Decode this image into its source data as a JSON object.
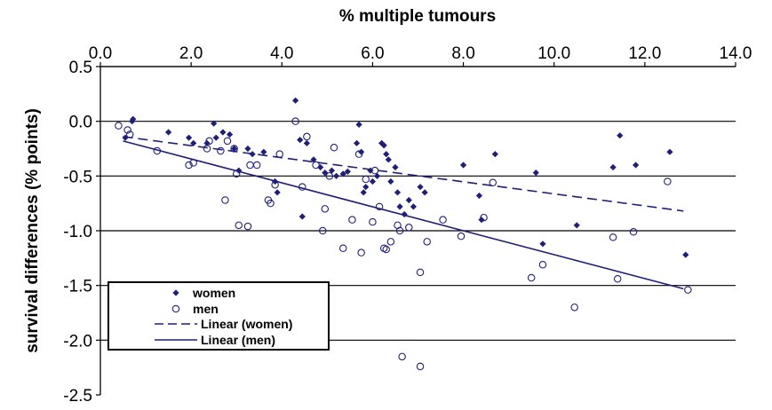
{
  "chart_data": {
    "type": "scatter",
    "xlabel": "% multiple tumours",
    "ylabel": "survival differences (% points)",
    "xlim": [
      0,
      14
    ],
    "ylim": [
      -2.5,
      0.5
    ],
    "x_axis_position": "top",
    "x_ticks": [
      0.0,
      2.0,
      4.0,
      6.0,
      8.0,
      10.0,
      12.0,
      14.0
    ],
    "x_tick_labels": [
      "0.0",
      "2.0",
      "4.0",
      "6.0",
      "8.0",
      "10.0",
      "12.0",
      "14.0"
    ],
    "y_ticks": [
      0.5,
      0.0,
      -0.5,
      -1.0,
      -1.5,
      -2.0,
      -2.5
    ],
    "y_tick_labels": [
      "0.5",
      "0.0",
      "-0.5",
      "-1.0",
      "-1.5",
      "-2.0",
      "-2.5"
    ],
    "grid": "horizontal",
    "legend_position": "bottom-left",
    "colors": {
      "series": "#1f1f7a",
      "grid": "#000000"
    },
    "series": [
      {
        "name": "women",
        "marker": "filled-diamond",
        "points": [
          [
            0.55,
            -0.15
          ],
          [
            0.7,
            0.0
          ],
          [
            0.72,
            0.02
          ],
          [
            1.5,
            -0.1
          ],
          [
            1.95,
            -0.15
          ],
          [
            2.05,
            -0.2
          ],
          [
            2.35,
            -0.2
          ],
          [
            2.5,
            -0.02
          ],
          [
            2.55,
            -0.15
          ],
          [
            2.7,
            -0.1
          ],
          [
            2.85,
            -0.12
          ],
          [
            2.95,
            -0.25
          ],
          [
            3.05,
            -0.45
          ],
          [
            3.25,
            -0.25
          ],
          [
            3.35,
            -0.3
          ],
          [
            3.6,
            -0.28
          ],
          [
            3.85,
            -0.55
          ],
          [
            3.9,
            -0.65
          ],
          [
            4.3,
            0.19
          ],
          [
            4.4,
            -0.17
          ],
          [
            4.55,
            -0.2
          ],
          [
            4.7,
            -0.35
          ],
          [
            4.85,
            -0.42
          ],
          [
            4.95,
            -0.47
          ],
          [
            5.1,
            -0.45
          ],
          [
            5.2,
            -0.5
          ],
          [
            5.35,
            -0.48
          ],
          [
            5.65,
            -0.2
          ],
          [
            5.7,
            -0.03
          ],
          [
            5.75,
            -0.28
          ],
          [
            5.8,
            -0.65
          ],
          [
            5.85,
            -0.6
          ],
          [
            5.95,
            -0.45
          ],
          [
            6.0,
            -0.55
          ],
          [
            6.1,
            -0.5
          ],
          [
            6.2,
            -0.2
          ],
          [
            6.25,
            -0.22
          ],
          [
            6.3,
            -0.3
          ],
          [
            6.35,
            -0.35
          ],
          [
            6.4,
            -0.55
          ],
          [
            6.5,
            -0.42
          ],
          [
            6.55,
            -0.65
          ],
          [
            6.6,
            -0.78
          ],
          [
            6.7,
            -0.85
          ],
          [
            6.8,
            -0.72
          ],
          [
            6.9,
            -0.78
          ],
          [
            7.05,
            -0.6
          ],
          [
            7.15,
            -0.65
          ],
          [
            8.0,
            -0.4
          ],
          [
            8.35,
            -0.68
          ],
          [
            8.4,
            -0.9
          ],
          [
            8.7,
            -0.3
          ],
          [
            9.6,
            -0.47
          ],
          [
            9.75,
            -1.12
          ],
          [
            10.5,
            -0.95
          ],
          [
            11.3,
            -0.42
          ],
          [
            11.45,
            -0.13
          ],
          [
            11.8,
            -0.4
          ],
          [
            12.55,
            -0.28
          ],
          [
            12.9,
            -1.22
          ],
          [
            4.45,
            -0.87
          ],
          [
            5.45,
            -0.46
          ]
        ]
      },
      {
        "name": "men",
        "marker": "open-circle",
        "points": [
          [
            0.4,
            -0.04
          ],
          [
            0.6,
            -0.08
          ],
          [
            0.65,
            -0.12
          ],
          [
            1.25,
            -0.27
          ],
          [
            1.95,
            -0.4
          ],
          [
            2.05,
            -0.38
          ],
          [
            2.35,
            -0.25
          ],
          [
            2.4,
            -0.18
          ],
          [
            2.65,
            -0.27
          ],
          [
            2.75,
            -0.72
          ],
          [
            2.8,
            -0.18
          ],
          [
            2.95,
            -0.25
          ],
          [
            3.0,
            -0.48
          ],
          [
            3.05,
            -0.95
          ],
          [
            3.25,
            -0.96
          ],
          [
            3.3,
            -0.4
          ],
          [
            3.45,
            -0.4
          ],
          [
            3.7,
            -0.72
          ],
          [
            3.75,
            -0.75
          ],
          [
            3.85,
            -0.58
          ],
          [
            4.3,
            0.0
          ],
          [
            4.45,
            -0.6
          ],
          [
            4.55,
            -0.14
          ],
          [
            4.75,
            -0.4
          ],
          [
            4.9,
            -1.0
          ],
          [
            4.95,
            -0.8
          ],
          [
            5.05,
            -0.5
          ],
          [
            5.15,
            -0.24
          ],
          [
            5.35,
            -1.16
          ],
          [
            5.55,
            -0.9
          ],
          [
            5.7,
            -0.3
          ],
          [
            5.75,
            -1.2
          ],
          [
            5.85,
            -0.53
          ],
          [
            6.0,
            -0.92
          ],
          [
            6.15,
            -0.78
          ],
          [
            6.25,
            -1.16
          ],
          [
            6.3,
            -1.17
          ],
          [
            6.4,
            -1.1
          ],
          [
            6.55,
            -0.95
          ],
          [
            6.6,
            -1.0
          ],
          [
            6.65,
            -2.15
          ],
          [
            6.8,
            -0.97
          ],
          [
            7.05,
            -2.24
          ],
          [
            7.05,
            -1.38
          ],
          [
            7.2,
            -1.1
          ],
          [
            7.55,
            -0.9
          ],
          [
            7.95,
            -1.05
          ],
          [
            8.45,
            -0.88
          ],
          [
            8.65,
            -0.56
          ],
          [
            9.5,
            -1.43
          ],
          [
            9.75,
            -1.31
          ],
          [
            10.45,
            -1.7
          ],
          [
            11.3,
            -1.06
          ],
          [
            11.4,
            -1.44
          ],
          [
            11.75,
            -1.01
          ],
          [
            12.5,
            -0.55
          ],
          [
            12.95,
            -1.54
          ],
          [
            3.95,
            -0.3
          ],
          [
            6.05,
            -0.45
          ]
        ]
      }
    ],
    "trendlines": [
      {
        "name": "Linear (women)",
        "style": "dashed",
        "from": [
          0.5,
          -0.14
        ],
        "to": [
          12.85,
          -0.82
        ]
      },
      {
        "name": "Linear (men)",
        "style": "solid",
        "from": [
          0.5,
          -0.18
        ],
        "to": [
          12.85,
          -1.53
        ]
      }
    ],
    "legend": [
      "women",
      "men",
      "Linear (women)",
      "Linear (men)"
    ]
  }
}
